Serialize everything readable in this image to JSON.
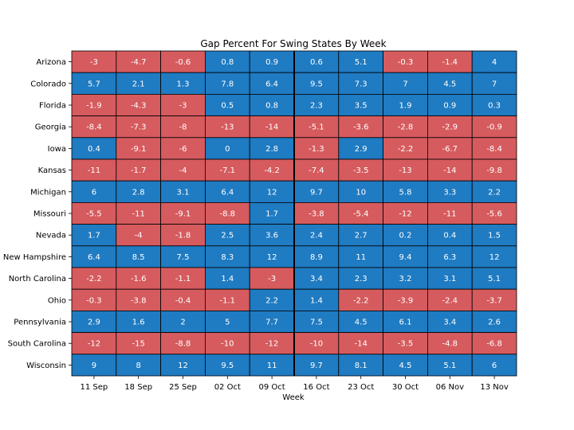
{
  "chart_data": {
    "type": "heatmap",
    "title": "Gap Percent For Swing States By Week",
    "xlabel": "Week",
    "ylabel": "",
    "categories": [
      "11 Sep",
      "18 Sep",
      "25 Sep",
      "02 Oct",
      "09 Oct",
      "16 Oct",
      "23 Oct",
      "30 Oct",
      "06 Nov",
      "13 Nov"
    ],
    "rows": [
      "Arizona",
      "Colorado",
      "Florida",
      "Georgia",
      "Iowa",
      "Kansas",
      "Michigan",
      "Missouri",
      "Nevada",
      "New Hampshire",
      "North Carolina",
      "Ohio",
      "Pennsylvania",
      "South Carolina",
      "Wisconsin"
    ],
    "values": [
      [
        "-3",
        "-4.7",
        "-0.6",
        "0.8",
        "0.9",
        "0.6",
        "5.1",
        "-0.3",
        "-1.4",
        "4"
      ],
      [
        "5.7",
        "2.1",
        "1.3",
        "7.8",
        "6.4",
        "9.5",
        "7.3",
        "7",
        "4.5",
        "7"
      ],
      [
        "-1.9",
        "-4.3",
        "-3",
        "0.5",
        "0.8",
        "2.3",
        "3.5",
        "1.9",
        "0.9",
        "0.3"
      ],
      [
        "-8.4",
        "-7.3",
        "-8",
        "-13",
        "-14",
        "-5.1",
        "-3.6",
        "-2.8",
        "-2.9",
        "-0.9"
      ],
      [
        "0.4",
        "-9.1",
        "-6",
        "0",
        "2.8",
        "-1.3",
        "2.9",
        "-2.2",
        "-6.7",
        "-8.4"
      ],
      [
        "-11",
        "-1.7",
        "-4",
        "-7.1",
        "-4.2",
        "-7.4",
        "-3.5",
        "-13",
        "-14",
        "-9.8"
      ],
      [
        "6",
        "2.8",
        "3.1",
        "6.4",
        "12",
        "9.7",
        "10",
        "5.8",
        "3.3",
        "2.2"
      ],
      [
        "-5.5",
        "-11",
        "-9.1",
        "-8.8",
        "1.7",
        "-3.8",
        "-5.4",
        "-12",
        "-11",
        "-5.6"
      ],
      [
        "1.7",
        "-4",
        "-1.8",
        "2.5",
        "3.6",
        "2.4",
        "2.7",
        "0.2",
        "0.4",
        "1.5"
      ],
      [
        "6.4",
        "8.5",
        "7.5",
        "8.3",
        "12",
        "8.9",
        "11",
        "9.4",
        "6.3",
        "12"
      ],
      [
        "-2.2",
        "-1.6",
        "-1.1",
        "1.4",
        "-3",
        "3.4",
        "2.3",
        "3.2",
        "3.1",
        "5.1"
      ],
      [
        "-0.3",
        "-3.8",
        "-0.4",
        "-1.1",
        "2.2",
        "1.4",
        "-2.2",
        "-3.9",
        "-2.4",
        "-3.7"
      ],
      [
        "2.9",
        "1.6",
        "2",
        "5",
        "7.7",
        "7.5",
        "4.5",
        "6.1",
        "3.4",
        "2.6"
      ],
      [
        "-12",
        "-15",
        "-8.8",
        "-10",
        "-12",
        "-10",
        "-14",
        "-3.5",
        "-4.8",
        "-6.8"
      ],
      [
        "9",
        "8",
        "12",
        "9.5",
        "11",
        "9.7",
        "8.1",
        "4.5",
        "5.1",
        "6"
      ]
    ],
    "colors": {
      "positive": "#1f7bc2",
      "negative": "#d65b5e",
      "cell_text": "#ffffff",
      "divider": "#000000"
    },
    "divider_after_column": "09 Oct",
    "grid": true,
    "legend": false
  }
}
